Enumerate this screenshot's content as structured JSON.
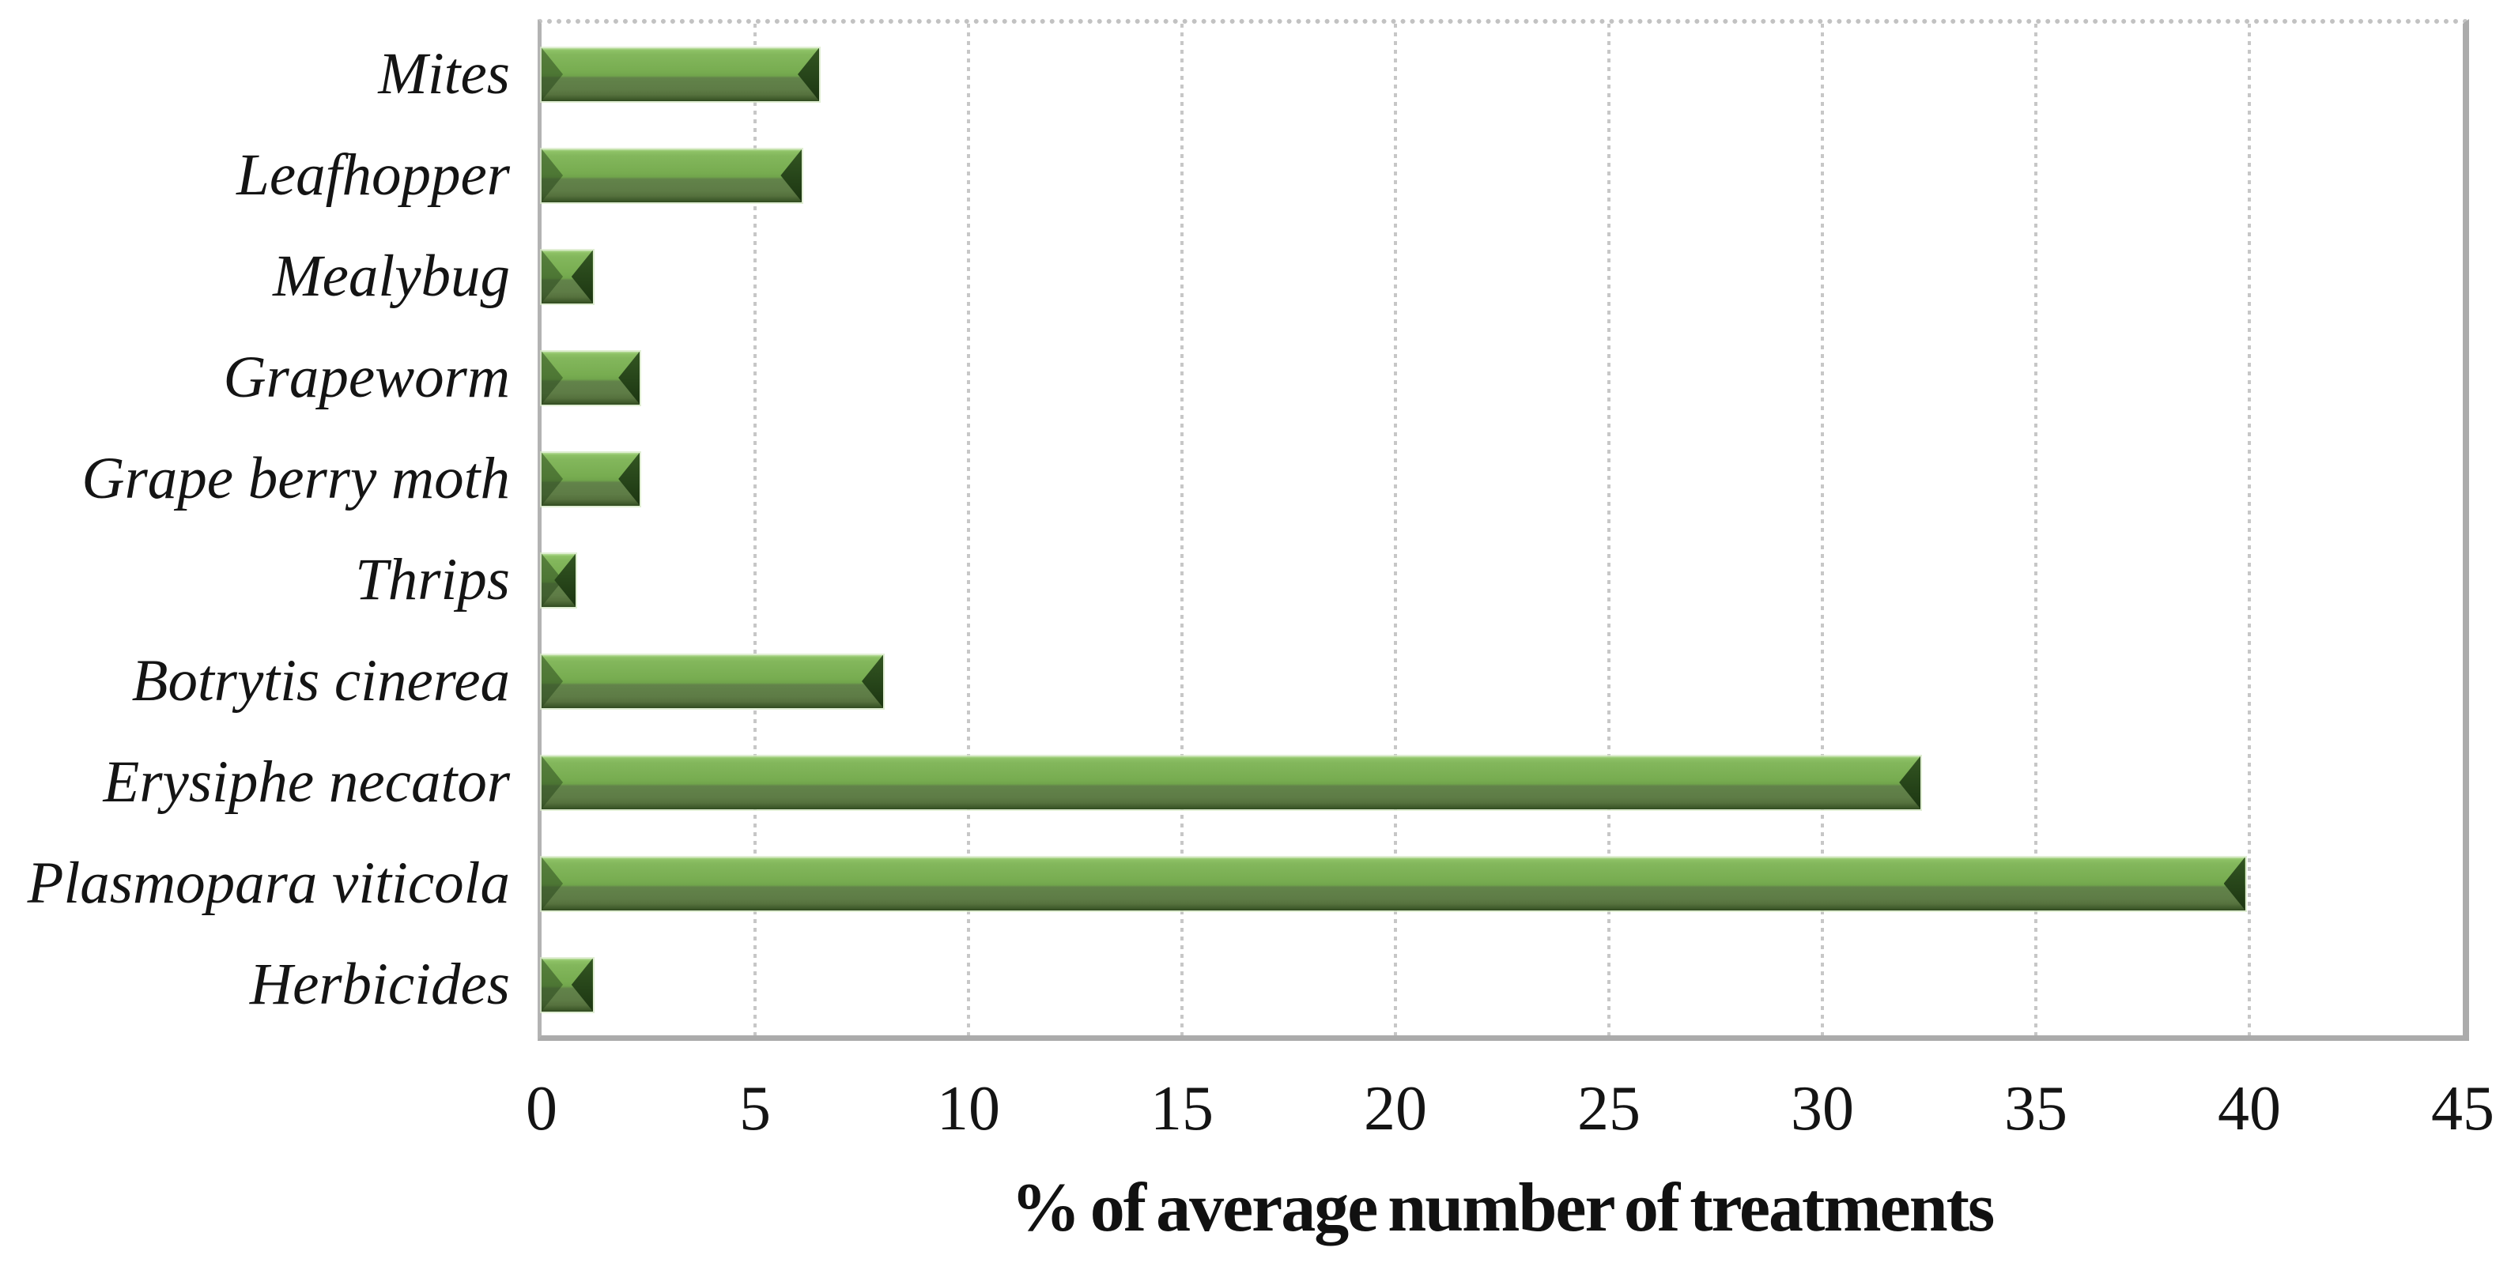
{
  "chart_data": {
    "type": "bar",
    "orientation": "horizontal",
    "title": "",
    "xlabel": "% of average number of treatments",
    "ylabel": "",
    "categories": [
      "Mites",
      "Leafhopper",
      "Mealybug",
      "Grapeworm",
      "Grape berry moth",
      "Thrips",
      "Botrytis cinerea",
      "Erysiphe necator",
      "Plasmopara viticola",
      "Herbicides"
    ],
    "values": [
      6.5,
      6.1,
      1.2,
      2.3,
      2.3,
      0.8,
      8.0,
      32.3,
      39.9,
      1.2
    ],
    "xlim": [
      0,
      45
    ],
    "xticks": [
      0,
      5,
      10,
      15,
      20,
      25,
      30,
      35,
      40,
      45
    ],
    "grid": "vertical-dotted-gridlines",
    "legend": "none",
    "colors": {
      "bar_face": "#77ac50",
      "bar_highlight": "#b8dd9b",
      "bar_shadow": "#5e7c46",
      "bar_bevel_dark": "#264419",
      "gridline": "#c7c7c7",
      "axis_frame": "#ababab",
      "text": "#141414",
      "background": "#ffffff"
    }
  }
}
